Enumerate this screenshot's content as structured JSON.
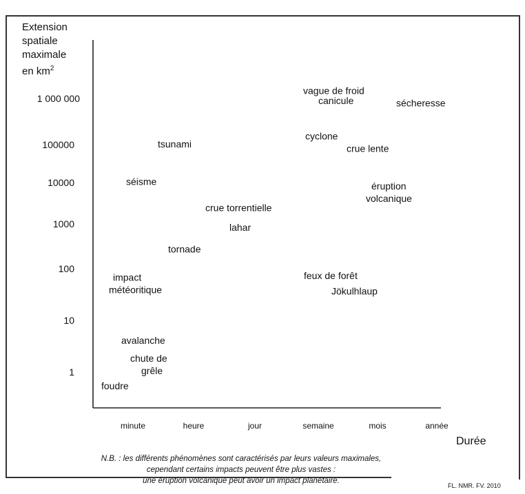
{
  "chart_data": {
    "type": "scatter",
    "ylabel_lines": [
      "Extension",
      "spatiale",
      "maximale",
      "en km"
    ],
    "ylabel_sup": "2",
    "xlabel": "Durée",
    "x_ticks": [
      "minute",
      "heure",
      "jour",
      "semaine",
      "mois",
      "année"
    ],
    "y_ticks": [
      "1 000 000",
      "100000",
      "10000",
      "1000",
      "100",
      "10",
      "1"
    ],
    "y_scale": "log",
    "points": [
      {
        "label": [
          "vague de froid"
        ],
        "duration": "semaine",
        "extent_km2": 1500000
      },
      {
        "label": [
          "canicule"
        ],
        "duration": "semaine",
        "extent_km2": 900000
      },
      {
        "label": [
          "sécheresse"
        ],
        "duration": "mois–année",
        "extent_km2": 800000
      },
      {
        "label": [
          "cyclone"
        ],
        "duration": "semaine",
        "extent_km2": 150000
      },
      {
        "label": [
          "crue lente"
        ],
        "duration": "mois",
        "extent_km2": 80000
      },
      {
        "label": [
          "tsunami"
        ],
        "duration": "heure",
        "extent_km2": 100000
      },
      {
        "label": [
          "éruption",
          "volcanique"
        ],
        "duration": "mois",
        "extent_km2": 12000
      },
      {
        "label": [
          "séisme"
        ],
        "duration": "minute",
        "extent_km2": 15000
      },
      {
        "label": [
          "crue torrentielle"
        ],
        "duration": "jour",
        "extent_km2": 4000
      },
      {
        "label": [
          "lahar"
        ],
        "duration": "jour",
        "extent_km2": 1500
      },
      {
        "label": [
          "tornade"
        ],
        "duration": "heure",
        "extent_km2": 500
      },
      {
        "label": [
          "impact",
          "météoritique"
        ],
        "duration": "minute",
        "extent_km2": 120
      },
      {
        "label": [
          "feux de forêt"
        ],
        "duration": "semaine",
        "extent_km2": 130
      },
      {
        "label": [
          "Jökulhlaup"
        ],
        "duration": "semaine–mois",
        "extent_km2": 60
      },
      {
        "label": [
          "avalanche"
        ],
        "duration": "minute–heure",
        "extent_km2": 5
      },
      {
        "label": [
          "chute de",
          "grêle"
        ],
        "duration": "minute–heure",
        "extent_km2": 2
      },
      {
        "label": [
          "foudre"
        ],
        "duration": "minute",
        "extent_km2": 0.5
      }
    ],
    "legend": "none",
    "grid": false
  },
  "note_lines": [
    "N.B. : les différents phénomènes sont caractérisés par leurs valeurs maximales,",
    "cependant certains impacts peuvent être plus vastes :",
    "une éruption volcanique peut avoir un impact planétaire."
  ],
  "credit": "FL. NMR. FV. 2010"
}
